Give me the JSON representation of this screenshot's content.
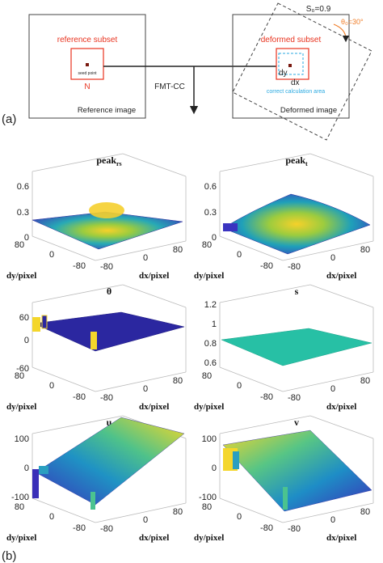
{
  "panel_a": {
    "label": "(a)",
    "reference_subset": "reference subset",
    "seed_point": "seed point",
    "n_label": "N",
    "reference_image": "Reference image",
    "method": "FMT-CC",
    "deformed_subset": "deformed subset",
    "dy": "dy",
    "dx": "dx",
    "correct_area": "correct calculation area",
    "deformed_image": "Deformed image",
    "scale": "S₀=0.9",
    "angle": "θ₀=30°"
  },
  "panel_b": {
    "label": "(b)",
    "plots": [
      {
        "title": "peak",
        "sub": "rs",
        "zticks": [
          "0.6",
          "0.3",
          "0"
        ],
        "dy_ticks": [
          "80",
          "0",
          "-80"
        ],
        "dx_ticks": [
          "-80",
          "0",
          "80"
        ],
        "xlabel": "dx/pixel",
        "ylabel": "dy/pixel"
      },
      {
        "title": "peak",
        "sub": "t",
        "zticks": [
          "0.6",
          "0.3",
          "0"
        ],
        "dy_ticks": [
          "80",
          "0",
          "-80"
        ],
        "dx_ticks": [
          "-80",
          "0",
          "80"
        ],
        "xlabel": "dx/pixel",
        "ylabel": "dy/pixel"
      },
      {
        "title": "θ",
        "sub": "",
        "zticks": [
          "60",
          "0",
          "-60"
        ],
        "dy_ticks": [
          "80",
          "0",
          "-80"
        ],
        "dx_ticks": [
          "-80",
          "0",
          "80"
        ],
        "xlabel": "dx/pixel",
        "ylabel": "dy/pixel"
      },
      {
        "title": "s",
        "sub": "",
        "zticks": [
          "1.2",
          "1",
          "0.8",
          "0.6"
        ],
        "dy_ticks": [
          "80",
          "0",
          "-80"
        ],
        "dx_ticks": [
          "-80",
          "0",
          "80"
        ],
        "xlabel": "dx/pixel",
        "ylabel": "dy/pixel"
      },
      {
        "title": "u",
        "sub": "",
        "zticks": [
          "100",
          "0",
          "-100"
        ],
        "dy_ticks": [
          "80",
          "0",
          "-80"
        ],
        "dx_ticks": [
          "-80",
          "0",
          "80"
        ],
        "xlabel": "dx/pixel",
        "ylabel": "dy/pixel"
      },
      {
        "title": "v",
        "sub": "",
        "zticks": [
          "100",
          "0",
          "-100"
        ],
        "dy_ticks": [
          "80",
          "0",
          "-80"
        ],
        "dx_ticks": [
          "-80",
          "0",
          "80"
        ],
        "xlabel": "dx/pixel",
        "ylabel": "dy/pixel"
      }
    ]
  },
  "colors": {
    "red": "#e8331f",
    "orange": "#f07d27",
    "cyan": "#29a9e1",
    "dark": "#222222"
  }
}
